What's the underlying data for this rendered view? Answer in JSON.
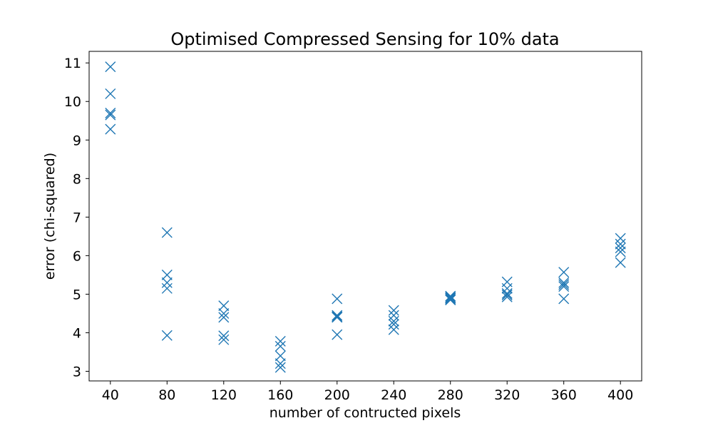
{
  "chart_data": {
    "type": "scatter",
    "title": "Optimised Compressed Sensing for 10% data",
    "xlabel": "number of contructed pixels",
    "ylabel": "error (chi-squared)",
    "xlim": [
      25,
      415
    ],
    "ylim": [
      2.75,
      11.3
    ],
    "xticks": [
      40,
      80,
      120,
      160,
      200,
      240,
      280,
      320,
      360,
      400
    ],
    "yticks": [
      3,
      4,
      5,
      6,
      7,
      8,
      9,
      10,
      11
    ],
    "marker": "x",
    "color": "#1f77b4",
    "grid": false,
    "points": [
      {
        "x": 40,
        "y": 10.9
      },
      {
        "x": 40,
        "y": 10.2
      },
      {
        "x": 40,
        "y": 9.7
      },
      {
        "x": 40,
        "y": 9.65
      },
      {
        "x": 40,
        "y": 9.28
      },
      {
        "x": 80,
        "y": 6.6
      },
      {
        "x": 80,
        "y": 5.5
      },
      {
        "x": 80,
        "y": 5.3
      },
      {
        "x": 80,
        "y": 5.15
      },
      {
        "x": 80,
        "y": 3.93
      },
      {
        "x": 120,
        "y": 4.7
      },
      {
        "x": 120,
        "y": 4.5
      },
      {
        "x": 120,
        "y": 4.4
      },
      {
        "x": 120,
        "y": 3.92
      },
      {
        "x": 120,
        "y": 3.82
      },
      {
        "x": 160,
        "y": 3.78
      },
      {
        "x": 160,
        "y": 3.65
      },
      {
        "x": 160,
        "y": 3.4
      },
      {
        "x": 160,
        "y": 3.2
      },
      {
        "x": 160,
        "y": 3.1
      },
      {
        "x": 200,
        "y": 4.88
      },
      {
        "x": 200,
        "y": 4.45
      },
      {
        "x": 200,
        "y": 4.42
      },
      {
        "x": 200,
        "y": 4.4
      },
      {
        "x": 200,
        "y": 3.95
      },
      {
        "x": 240,
        "y": 4.58
      },
      {
        "x": 240,
        "y": 4.45
      },
      {
        "x": 240,
        "y": 4.3
      },
      {
        "x": 240,
        "y": 4.22
      },
      {
        "x": 240,
        "y": 4.08
      },
      {
        "x": 280,
        "y": 4.95
      },
      {
        "x": 280,
        "y": 4.92
      },
      {
        "x": 280,
        "y": 4.9
      },
      {
        "x": 280,
        "y": 4.87
      },
      {
        "x": 280,
        "y": 4.85
      },
      {
        "x": 320,
        "y": 5.32
      },
      {
        "x": 320,
        "y": 5.15
      },
      {
        "x": 320,
        "y": 5.02
      },
      {
        "x": 320,
        "y": 4.98
      },
      {
        "x": 320,
        "y": 4.93
      },
      {
        "x": 360,
        "y": 5.57
      },
      {
        "x": 360,
        "y": 5.3
      },
      {
        "x": 360,
        "y": 5.25
      },
      {
        "x": 360,
        "y": 5.2
      },
      {
        "x": 360,
        "y": 4.88
      },
      {
        "x": 400,
        "y": 6.45
      },
      {
        "x": 400,
        "y": 6.3
      },
      {
        "x": 400,
        "y": 6.2
      },
      {
        "x": 400,
        "y": 6.1
      },
      {
        "x": 400,
        "y": 5.82
      }
    ]
  }
}
